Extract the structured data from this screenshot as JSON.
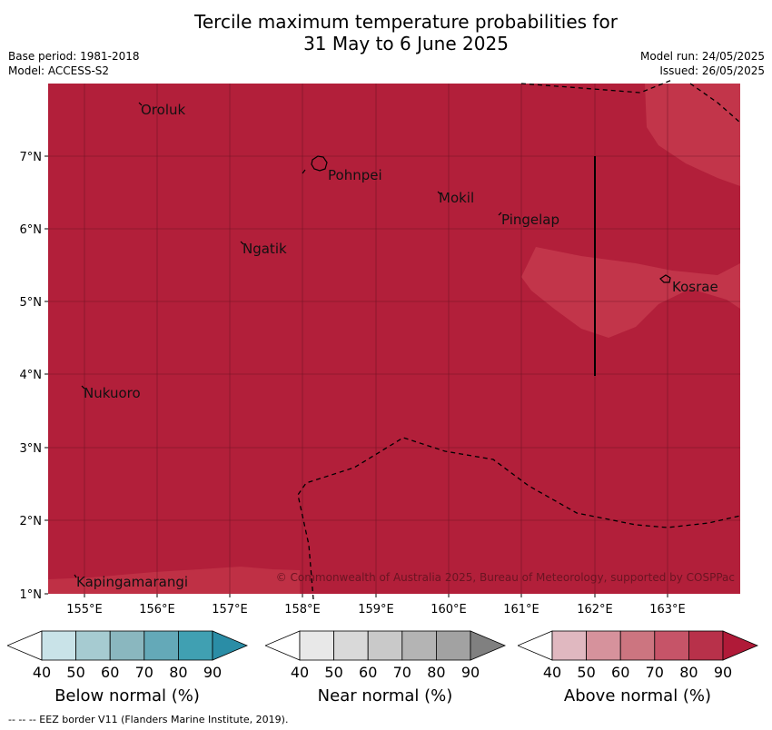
{
  "title": {
    "line1": "Tercile maximum temperature probabilities for",
    "line2": "31 May to 6 June 2025"
  },
  "meta": {
    "base_period": "Base period: 1981-2018",
    "model": "Model: ACCESS-S2",
    "model_run": "Model run: 24/05/2025",
    "issued": "Issued: 26/05/2025"
  },
  "map": {
    "lon_range": [
      154.5,
      164.0
    ],
    "lat_range": [
      1.0,
      8.0
    ],
    "lon_ticks": [
      "155°E",
      "156°E",
      "157°E",
      "158°E",
      "159°E",
      "160°E",
      "161°E",
      "162°E",
      "163°E"
    ],
    "lat_ticks": [
      "1°N",
      "2°N",
      "3°N",
      "4°N",
      "5°N",
      "6°N",
      "7°N"
    ],
    "colors": {
      "above_80_90": "#b21f3a",
      "above_70_80": "#c2354a",
      "grid": "#5a0f1c",
      "ocean_border": "#000000"
    },
    "places": [
      {
        "name": "Oroluk",
        "lon": 155.78,
        "lat": 7.55
      },
      {
        "name": "Pohnpei",
        "lon": 158.35,
        "lat": 6.8
      },
      {
        "name": "Mokil",
        "lon": 159.82,
        "lat": 6.4
      },
      {
        "name": "Pingelap",
        "lon": 160.7,
        "lat": 6.15
      },
      {
        "name": "Ngatik",
        "lon": 157.15,
        "lat": 5.75
      },
      {
        "name": "Kosrae",
        "lon": 163.0,
        "lat": 5.25
      },
      {
        "name": "Nukuoro",
        "lon": 154.95,
        "lat": 3.75
      },
      {
        "name": "Kapingamarangi",
        "lon": 154.8,
        "lat": 1.15
      }
    ],
    "copyright": "© Commonwealth of Australia 2025, Bureau of Meteorology, supported by COSPPac"
  },
  "legends": [
    {
      "label": "Below normal (%)",
      "ticks": [
        "40",
        "50",
        "60",
        "70",
        "80",
        "90"
      ],
      "colors": [
        "#ffffff",
        "#c9e3e8",
        "#a6cbd1",
        "#8ab7bf",
        "#64a9b8",
        "#40a0b2",
        "#2a8da6"
      ]
    },
    {
      "label": "Near normal (%)",
      "ticks": [
        "40",
        "50",
        "60",
        "70",
        "80",
        "90"
      ],
      "colors": [
        "#ffffff",
        "#e8e8e8",
        "#d9d9d9",
        "#c9c9c9",
        "#b4b4b4",
        "#a2a2a2",
        "#808080"
      ]
    },
    {
      "label": "Above normal (%)",
      "ticks": [
        "40",
        "50",
        "60",
        "70",
        "80",
        "90"
      ],
      "colors": [
        "#ffffff",
        "#e0b8c0",
        "#d6929c",
        "#cc7580",
        "#c65468",
        "#b8314a",
        "#b01a38"
      ]
    }
  ],
  "footnote": "-- -- -- EEZ border V11 (Flanders Marine Institute, 2019)."
}
